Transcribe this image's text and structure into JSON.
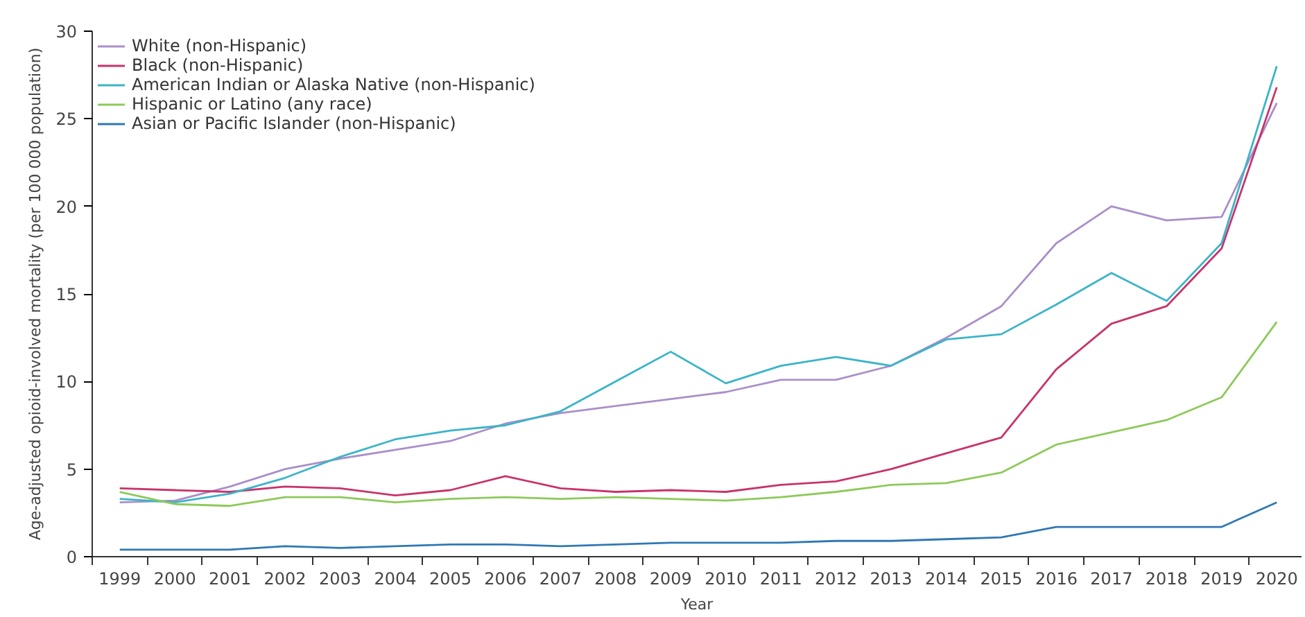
{
  "chart_data": {
    "type": "line",
    "xlabel": "Year",
    "ylabel": "Age-adjusted opioid-involved mortality (per 100 000 population)",
    "categories": [
      "1999",
      "2000",
      "2001",
      "2002",
      "2003",
      "2004",
      "2005",
      "2006",
      "2007",
      "2008",
      "2009",
      "2010",
      "2011",
      "2012",
      "2013",
      "2014",
      "2015",
      "2016",
      "2017",
      "2018",
      "2019",
      "2020"
    ],
    "ylim": [
      0,
      30
    ],
    "yticks": [
      0,
      5,
      10,
      15,
      20,
      25,
      30
    ],
    "grid": false,
    "legend": "top left",
    "marker": "none",
    "line_style": "solid",
    "series": [
      {
        "name": "White (non-Hispanic)",
        "color": "#a98fc9",
        "values": [
          3.1,
          3.2,
          4.0,
          5.0,
          5.6,
          6.1,
          6.6,
          7.6,
          8.2,
          8.6,
          9.0,
          9.4,
          10.1,
          10.1,
          10.9,
          12.5,
          14.3,
          17.9,
          20.0,
          19.2,
          19.4,
          25.9
        ]
      },
      {
        "name": "Black (non-Hispanic)",
        "color": "#c8336b",
        "values": [
          3.9,
          3.8,
          3.7,
          4.0,
          3.9,
          3.5,
          3.8,
          4.6,
          3.9,
          3.7,
          3.8,
          3.7,
          4.1,
          4.3,
          5.0,
          5.9,
          6.8,
          10.7,
          13.3,
          14.3,
          17.6,
          26.8
        ]
      },
      {
        "name": "American Indian or Alaska Native (non-Hispanic)",
        "color": "#3bb4c8",
        "values": [
          3.3,
          3.1,
          3.6,
          4.5,
          5.7,
          6.7,
          7.2,
          7.5,
          8.3,
          10.0,
          11.7,
          9.9,
          10.9,
          11.4,
          10.9,
          12.4,
          12.7,
          14.4,
          16.2,
          14.6,
          17.9,
          28.0
        ]
      },
      {
        "name": "Hispanic or Latino (any race)",
        "color": "#8dc95a",
        "values": [
          3.7,
          3.0,
          2.9,
          3.4,
          3.4,
          3.1,
          3.3,
          3.4,
          3.3,
          3.4,
          3.3,
          3.2,
          3.4,
          3.7,
          4.1,
          4.2,
          4.8,
          6.4,
          7.1,
          7.8,
          9.1,
          13.4
        ]
      },
      {
        "name": "Asian or Pacific Islander (non-Hispanic)",
        "color": "#2f78b4",
        "values": [
          0.4,
          0.4,
          0.4,
          0.6,
          0.5,
          0.6,
          0.7,
          0.7,
          0.6,
          0.7,
          0.8,
          0.8,
          0.8,
          0.9,
          0.9,
          1.0,
          1.1,
          1.7,
          1.7,
          1.7,
          1.7,
          3.1
        ]
      }
    ]
  }
}
